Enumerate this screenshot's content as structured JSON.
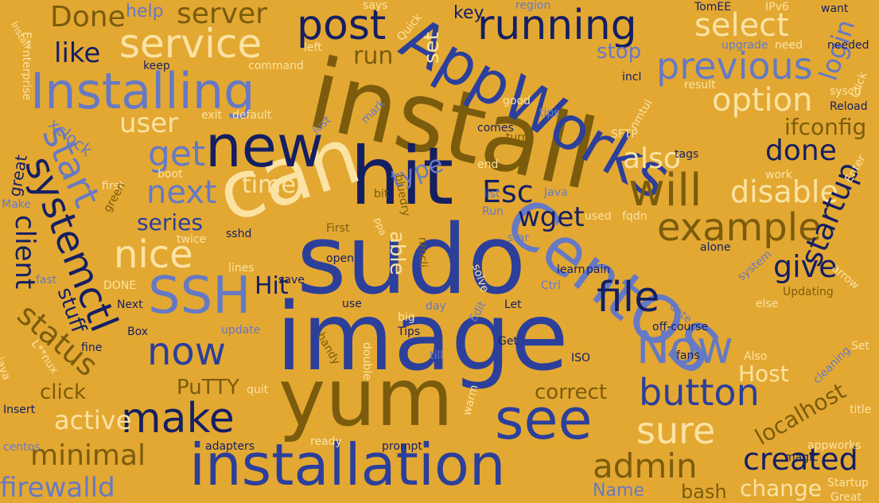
{
  "palette": {
    "background": "#e3a832",
    "navy": "#141f63",
    "royal": "#2b3f9b",
    "periwinkle": "#6679c4",
    "brown": "#7b5c0c",
    "cream": "#fbe3a3"
  },
  "words": [
    {
      "text": "sudo",
      "color": "royal"
    },
    {
      "text": "image",
      "color": "royal"
    },
    {
      "text": "install",
      "color": "brown"
    },
    {
      "text": "hit",
      "color": "navy"
    },
    {
      "text": "can",
      "color": "cream"
    },
    {
      "text": "yum",
      "color": "brown"
    },
    {
      "text": "AppWorks",
      "color": "royal"
    },
    {
      "text": "CentOS",
      "color": "periwinkle"
    },
    {
      "text": "new",
      "color": "navy"
    },
    {
      "text": "installation",
      "color": "royal"
    },
    {
      "text": "see",
      "color": "royal"
    },
    {
      "text": "Installing",
      "color": "periwinkle"
    },
    {
      "text": "SSH",
      "color": "periwinkle"
    },
    {
      "text": "systemctl",
      "color": "navy"
    },
    {
      "text": "make",
      "color": "navy"
    },
    {
      "text": "running",
      "color": "navy"
    },
    {
      "text": "post",
      "color": "navy"
    },
    {
      "text": "service",
      "color": "cream"
    },
    {
      "text": "previous",
      "color": "periwinkle"
    },
    {
      "text": "Now",
      "color": "periwinkle"
    },
    {
      "text": "now",
      "color": "royal"
    },
    {
      "text": "will",
      "color": "brown"
    },
    {
      "text": "example",
      "color": "brown"
    },
    {
      "text": "file",
      "color": "navy"
    },
    {
      "text": "button",
      "color": "royal"
    },
    {
      "text": "sure",
      "color": "cream"
    },
    {
      "text": "start",
      "color": "periwinkle"
    },
    {
      "text": "status",
      "color": "brown"
    },
    {
      "text": "nice",
      "color": "cream"
    },
    {
      "text": "get",
      "color": "periwinkle"
    },
    {
      "text": "next",
      "color": "periwinkle"
    },
    {
      "text": "option",
      "color": "cream"
    },
    {
      "text": "select",
      "color": "cream"
    },
    {
      "text": "done",
      "color": "navy"
    },
    {
      "text": "disable",
      "color": "cream"
    },
    {
      "text": "startup",
      "color": "navy"
    },
    {
      "text": "admin",
      "color": "brown"
    },
    {
      "text": "created",
      "color": "navy"
    },
    {
      "text": "give",
      "color": "navy"
    },
    {
      "text": "also",
      "color": "cream"
    },
    {
      "text": "Done",
      "color": "brown"
    },
    {
      "text": "server",
      "color": "brown"
    },
    {
      "text": "like",
      "color": "navy"
    },
    {
      "text": "user",
      "color": "cream"
    },
    {
      "text": "client",
      "color": "navy"
    },
    {
      "text": "minimal",
      "color": "brown"
    },
    {
      "text": "firewalld",
      "color": "periwinkle"
    },
    {
      "text": "active",
      "color": "cream"
    },
    {
      "text": "Esc",
      "color": "navy"
    },
    {
      "text": "wget",
      "color": "navy"
    },
    {
      "text": "Hit",
      "color": "navy"
    },
    {
      "text": "time",
      "color": "cream"
    },
    {
      "text": "series",
      "color": "royal"
    },
    {
      "text": "type",
      "color": "periwinkle"
    },
    {
      "text": "run",
      "color": "brown"
    },
    {
      "text": "login",
      "color": "periwinkle"
    },
    {
      "text": "stop",
      "color": "periwinkle"
    },
    {
      "text": "ifconfig",
      "color": "brown"
    },
    {
      "text": "localhost",
      "color": "brown"
    },
    {
      "text": "correct",
      "color": "brown"
    },
    {
      "text": "Host",
      "color": "cream"
    },
    {
      "text": "PuTTY",
      "color": "brown"
    },
    {
      "text": "click",
      "color": "brown"
    },
    {
      "text": "stuff",
      "color": "navy"
    },
    {
      "text": "change",
      "color": "cream"
    },
    {
      "text": "Name",
      "color": "periwinkle"
    },
    {
      "text": "bash",
      "color": "brown"
    },
    {
      "text": "able",
      "color": "cream"
    },
    {
      "text": "set",
      "color": "cream"
    },
    {
      "text": "key",
      "color": "navy"
    },
    {
      "text": "help",
      "color": "periwinkle"
    },
    {
      "text": "xclock",
      "color": "periwinkle"
    },
    {
      "text": "great",
      "color": "navy"
    },
    {
      "text": "sshd",
      "color": "navy"
    },
    {
      "text": "open",
      "color": "navy"
    },
    {
      "text": "learn",
      "color": "navy"
    },
    {
      "text": "pain",
      "color": "navy"
    },
    {
      "text": "save",
      "color": "navy"
    },
    {
      "text": "Next",
      "color": "navy"
    },
    {
      "text": "Box",
      "color": "navy"
    },
    {
      "text": "fine",
      "color": "navy"
    },
    {
      "text": "Get",
      "color": "navy"
    },
    {
      "text": "Insert",
      "color": "navy"
    },
    {
      "text": "adapters",
      "color": "navy"
    },
    {
      "text": "prompt",
      "color": "navy"
    },
    {
      "text": "magic",
      "color": "navy"
    },
    {
      "text": "off-course",
      "color": "navy"
    },
    {
      "text": "fans",
      "color": "navy"
    },
    {
      "text": "alone",
      "color": "navy"
    },
    {
      "text": "incl",
      "color": "navy"
    },
    {
      "text": "tags",
      "color": "navy"
    },
    {
      "text": "keep",
      "color": "navy"
    },
    {
      "text": "comes",
      "color": "navy"
    },
    {
      "text": "Let",
      "color": "navy"
    },
    {
      "text": "ISO",
      "color": "navy"
    },
    {
      "text": "TomEE",
      "color": "navy"
    },
    {
      "text": "want",
      "color": "navy"
    },
    {
      "text": "needed",
      "color": "navy"
    },
    {
      "text": "Reload",
      "color": "navy"
    },
    {
      "text": "sysctl",
      "color": "cream"
    },
    {
      "text": "Enter",
      "color": "cream"
    },
    {
      "text": "work",
      "color": "cream"
    },
    {
      "text": "Click",
      "color": "cream"
    },
    {
      "text": "arrow",
      "color": "cream"
    },
    {
      "text": "else",
      "color": "cream"
    },
    {
      "text": "Also",
      "color": "cream"
    },
    {
      "text": "appworks",
      "color": "cream"
    },
    {
      "text": "Startup",
      "color": "cream"
    },
    {
      "text": "Great",
      "color": "cream"
    },
    {
      "text": "title",
      "color": "cream"
    },
    {
      "text": "Set",
      "color": "cream"
    },
    {
      "text": "cleaning",
      "color": "periwinkle"
    },
    {
      "text": "Updating",
      "color": "brown"
    },
    {
      "text": "system",
      "color": "periwinkle"
    },
    {
      "text": "date",
      "color": "periwinkle"
    },
    {
      "text": "nmtui",
      "color": "cream"
    },
    {
      "text": "SFTP",
      "color": "cream"
    },
    {
      "text": "result",
      "color": "cream"
    },
    {
      "text": "IPv6",
      "color": "cream"
    },
    {
      "text": "need",
      "color": "cream"
    },
    {
      "text": "upgrade",
      "color": "periwinkle"
    },
    {
      "text": "region",
      "color": "periwinkle"
    },
    {
      "text": "says",
      "color": "cream"
    },
    {
      "text": "Quick",
      "color": "cream"
    },
    {
      "text": "left",
      "color": "cream"
    },
    {
      "text": "command",
      "color": "cream"
    },
    {
      "text": "exit",
      "color": "cream"
    },
    {
      "text": "default",
      "color": "cream"
    },
    {
      "text": "just",
      "color": "periwinkle"
    },
    {
      "text": "mark",
      "color": "periwinkle"
    },
    {
      "text": "good",
      "color": "cream"
    },
    {
      "text": "tips",
      "color": "periwinkle"
    },
    {
      "text": "turn",
      "color": "brown"
    },
    {
      "text": "end",
      "color": "cream"
    },
    {
      "text": "bluedry",
      "color": "brown"
    },
    {
      "text": "bit",
      "color": "brown"
    },
    {
      "text": "list",
      "color": "periwinkle"
    },
    {
      "text": "Java",
      "color": "periwinkle"
    },
    {
      "text": "Run",
      "color": "periwinkle"
    },
    {
      "text": "star",
      "color": "periwinkle"
    },
    {
      "text": "used",
      "color": "cream"
    },
    {
      "text": "fqdn",
      "color": "cream"
    },
    {
      "text": "nmcli",
      "color": "brown"
    },
    {
      "text": "solve",
      "color": "cream"
    },
    {
      "text": "First",
      "color": "brown"
    },
    {
      "text": "boot",
      "color": "cream"
    },
    {
      "text": "first",
      "color": "cream"
    },
    {
      "text": "twice",
      "color": "cream"
    },
    {
      "text": "green",
      "color": "brown"
    },
    {
      "text": "Make",
      "color": "periwinkle"
    },
    {
      "text": "lines",
      "color": "cream"
    },
    {
      "text": "fast",
      "color": "periwinkle"
    },
    {
      "text": "DONE",
      "color": "cream"
    },
    {
      "text": "Ctrl",
      "color": "periwinkle"
    },
    {
      "text": "use",
      "color": "navy"
    },
    {
      "text": "big",
      "color": "cream"
    },
    {
      "text": "day",
      "color": "periwinkle"
    },
    {
      "text": "Tips",
      "color": "navy"
    },
    {
      "text": "update",
      "color": "periwinkle"
    },
    {
      "text": "handy",
      "color": "brown"
    },
    {
      "text": "till",
      "color": "periwinkle"
    },
    {
      "text": "Edit",
      "color": "periwinkle"
    },
    {
      "text": "double",
      "color": "cream"
    },
    {
      "text": "warm",
      "color": "cream"
    },
    {
      "text": "ready",
      "color": "cream"
    },
    {
      "text": "quit",
      "color": "cream"
    },
    {
      "text": "java",
      "color": "cream"
    },
    {
      "text": "L**nux",
      "color": "cream"
    },
    {
      "text": "centos",
      "color": "periwinkle"
    },
    {
      "text": "E**nterprise",
      "color": "cream"
    },
    {
      "text": "Install",
      "color": "cream"
    },
    {
      "text": "ppa",
      "color": "cream"
    }
  ]
}
